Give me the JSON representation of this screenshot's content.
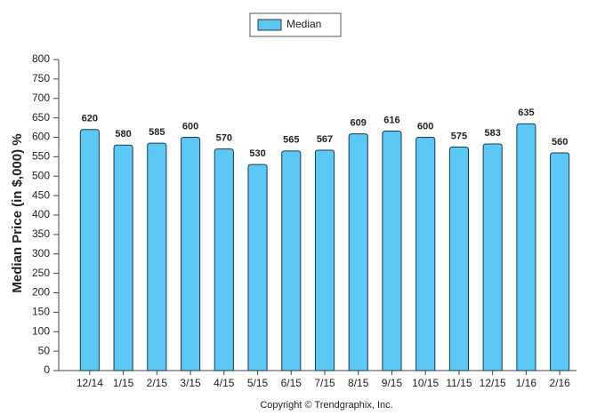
{
  "chart_data": {
    "type": "bar",
    "y_label": "Median Price (in $,000) %",
    "note": "Copyright © Trendgraphix, Inc.",
    "categories": [
      "12/14",
      "1/15",
      "2/15",
      "3/15",
      "4/15",
      "5/15",
      "6/15",
      "7/15",
      "8/15",
      "9/15",
      "10/15",
      "11/15",
      "12/15",
      "1/16",
      "2/16"
    ],
    "series": [
      {
        "name": "Median",
        "color": "#5bc8f5",
        "values": [
          620,
          580,
          585,
          600,
          570,
          530,
          565,
          567,
          609,
          616,
          600,
          575,
          583,
          635,
          560
        ]
      }
    ],
    "ylim": [
      0,
      800
    ],
    "yticks": [
      0,
      50,
      100,
      150,
      200,
      250,
      300,
      350,
      400,
      450,
      500,
      550,
      600,
      650,
      700,
      750,
      800
    ],
    "grid": false
  }
}
